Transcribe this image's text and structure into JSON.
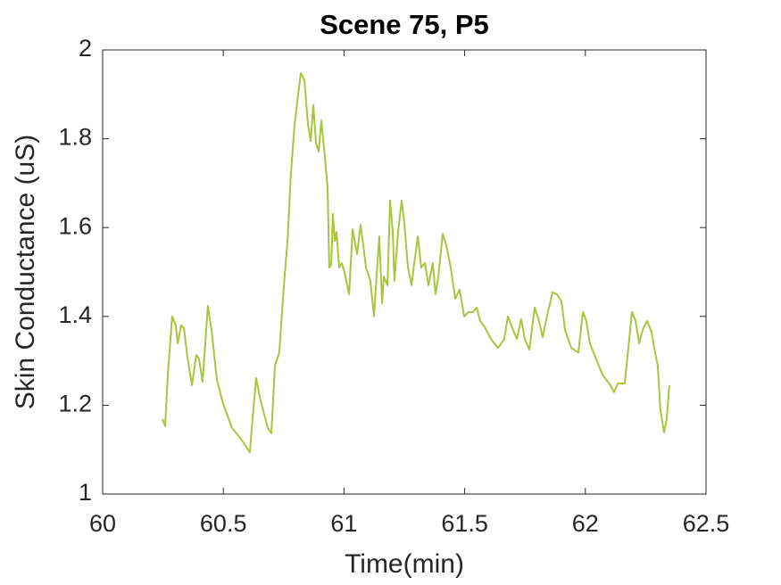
{
  "chart_data": {
    "type": "line",
    "title": "Scene 75, P5",
    "x_label": "Time(min)",
    "y_label": "Skin Conductance (uS)",
    "xlim": [
      60,
      62.5
    ],
    "xticks": [
      60,
      60.5,
      61,
      61.5,
      62,
      62.5
    ],
    "ylim": [
      1,
      2
    ],
    "yticks": [
      1,
      1.2,
      1.4,
      1.6,
      1.8,
      2
    ],
    "grid": false,
    "x": [
      60.248,
      60.259,
      60.27,
      60.288,
      60.303,
      60.311,
      60.325,
      60.337,
      60.351,
      60.37,
      60.388,
      60.399,
      60.414,
      60.436,
      60.451,
      60.473,
      60.499,
      60.536,
      60.573,
      60.61,
      60.621,
      60.636,
      60.655,
      60.684,
      60.699,
      60.714,
      60.732,
      60.751,
      60.766,
      60.78,
      60.795,
      60.806,
      60.821,
      60.836,
      60.851,
      60.862,
      60.873,
      60.884,
      60.895,
      60.906,
      60.917,
      60.932,
      60.939,
      60.947,
      60.954,
      60.962,
      60.969,
      60.98,
      60.991,
      61.002,
      61.021,
      61.036,
      61.054,
      61.069,
      61.08,
      61.091,
      61.109,
      61.124,
      61.146,
      61.158,
      61.165,
      61.18,
      61.191,
      61.202,
      61.209,
      61.224,
      61.239,
      61.25,
      61.265,
      61.28,
      61.291,
      61.306,
      61.32,
      61.335,
      61.35,
      61.368,
      61.379,
      61.391,
      61.409,
      61.424,
      61.442,
      61.461,
      61.479,
      61.498,
      61.516,
      61.535,
      61.55,
      61.564,
      61.583,
      61.609,
      61.638,
      61.664,
      61.679,
      61.701,
      61.716,
      61.734,
      61.749,
      61.768,
      61.79,
      61.808,
      61.823,
      61.845,
      61.864,
      61.882,
      61.901,
      61.916,
      61.942,
      61.971,
      61.99,
      62.004,
      62.019,
      62.041,
      62.071,
      62.104,
      62.119,
      62.134,
      62.163,
      62.182,
      62.193,
      62.208,
      62.223,
      62.237,
      62.256,
      62.274,
      62.289,
      62.3,
      62.311,
      62.326,
      62.337,
      62.348
    ],
    "series": [
      {
        "color": "#a6c63c",
        "values": [
          1.169,
          1.153,
          1.269,
          1.4,
          1.38,
          1.339,
          1.38,
          1.373,
          1.309,
          1.245,
          1.313,
          1.305,
          1.253,
          1.424,
          1.369,
          1.259,
          1.203,
          1.149,
          1.124,
          1.094,
          1.169,
          1.261,
          1.209,
          1.149,
          1.137,
          1.289,
          1.319,
          1.47,
          1.57,
          1.721,
          1.831,
          1.882,
          1.948,
          1.932,
          1.831,
          1.795,
          1.876,
          1.791,
          1.771,
          1.841,
          1.781,
          1.691,
          1.51,
          1.516,
          1.631,
          1.57,
          1.59,
          1.51,
          1.52,
          1.5,
          1.45,
          1.596,
          1.54,
          1.606,
          1.56,
          1.51,
          1.48,
          1.4,
          1.58,
          1.43,
          1.49,
          1.47,
          1.661,
          1.59,
          1.48,
          1.59,
          1.661,
          1.61,
          1.51,
          1.47,
          1.52,
          1.58,
          1.51,
          1.52,
          1.47,
          1.52,
          1.45,
          1.49,
          1.586,
          1.56,
          1.51,
          1.44,
          1.46,
          1.4,
          1.41,
          1.41,
          1.42,
          1.39,
          1.376,
          1.349,
          1.329,
          1.349,
          1.4,
          1.369,
          1.349,
          1.394,
          1.349,
          1.325,
          1.42,
          1.39,
          1.353,
          1.41,
          1.454,
          1.45,
          1.434,
          1.369,
          1.329,
          1.319,
          1.41,
          1.39,
          1.339,
          1.309,
          1.269,
          1.245,
          1.229,
          1.249,
          1.249,
          1.349,
          1.41,
          1.39,
          1.339,
          1.369,
          1.39,
          1.365,
          1.319,
          1.289,
          1.189,
          1.139,
          1.169,
          1.245
        ]
      }
    ]
  }
}
